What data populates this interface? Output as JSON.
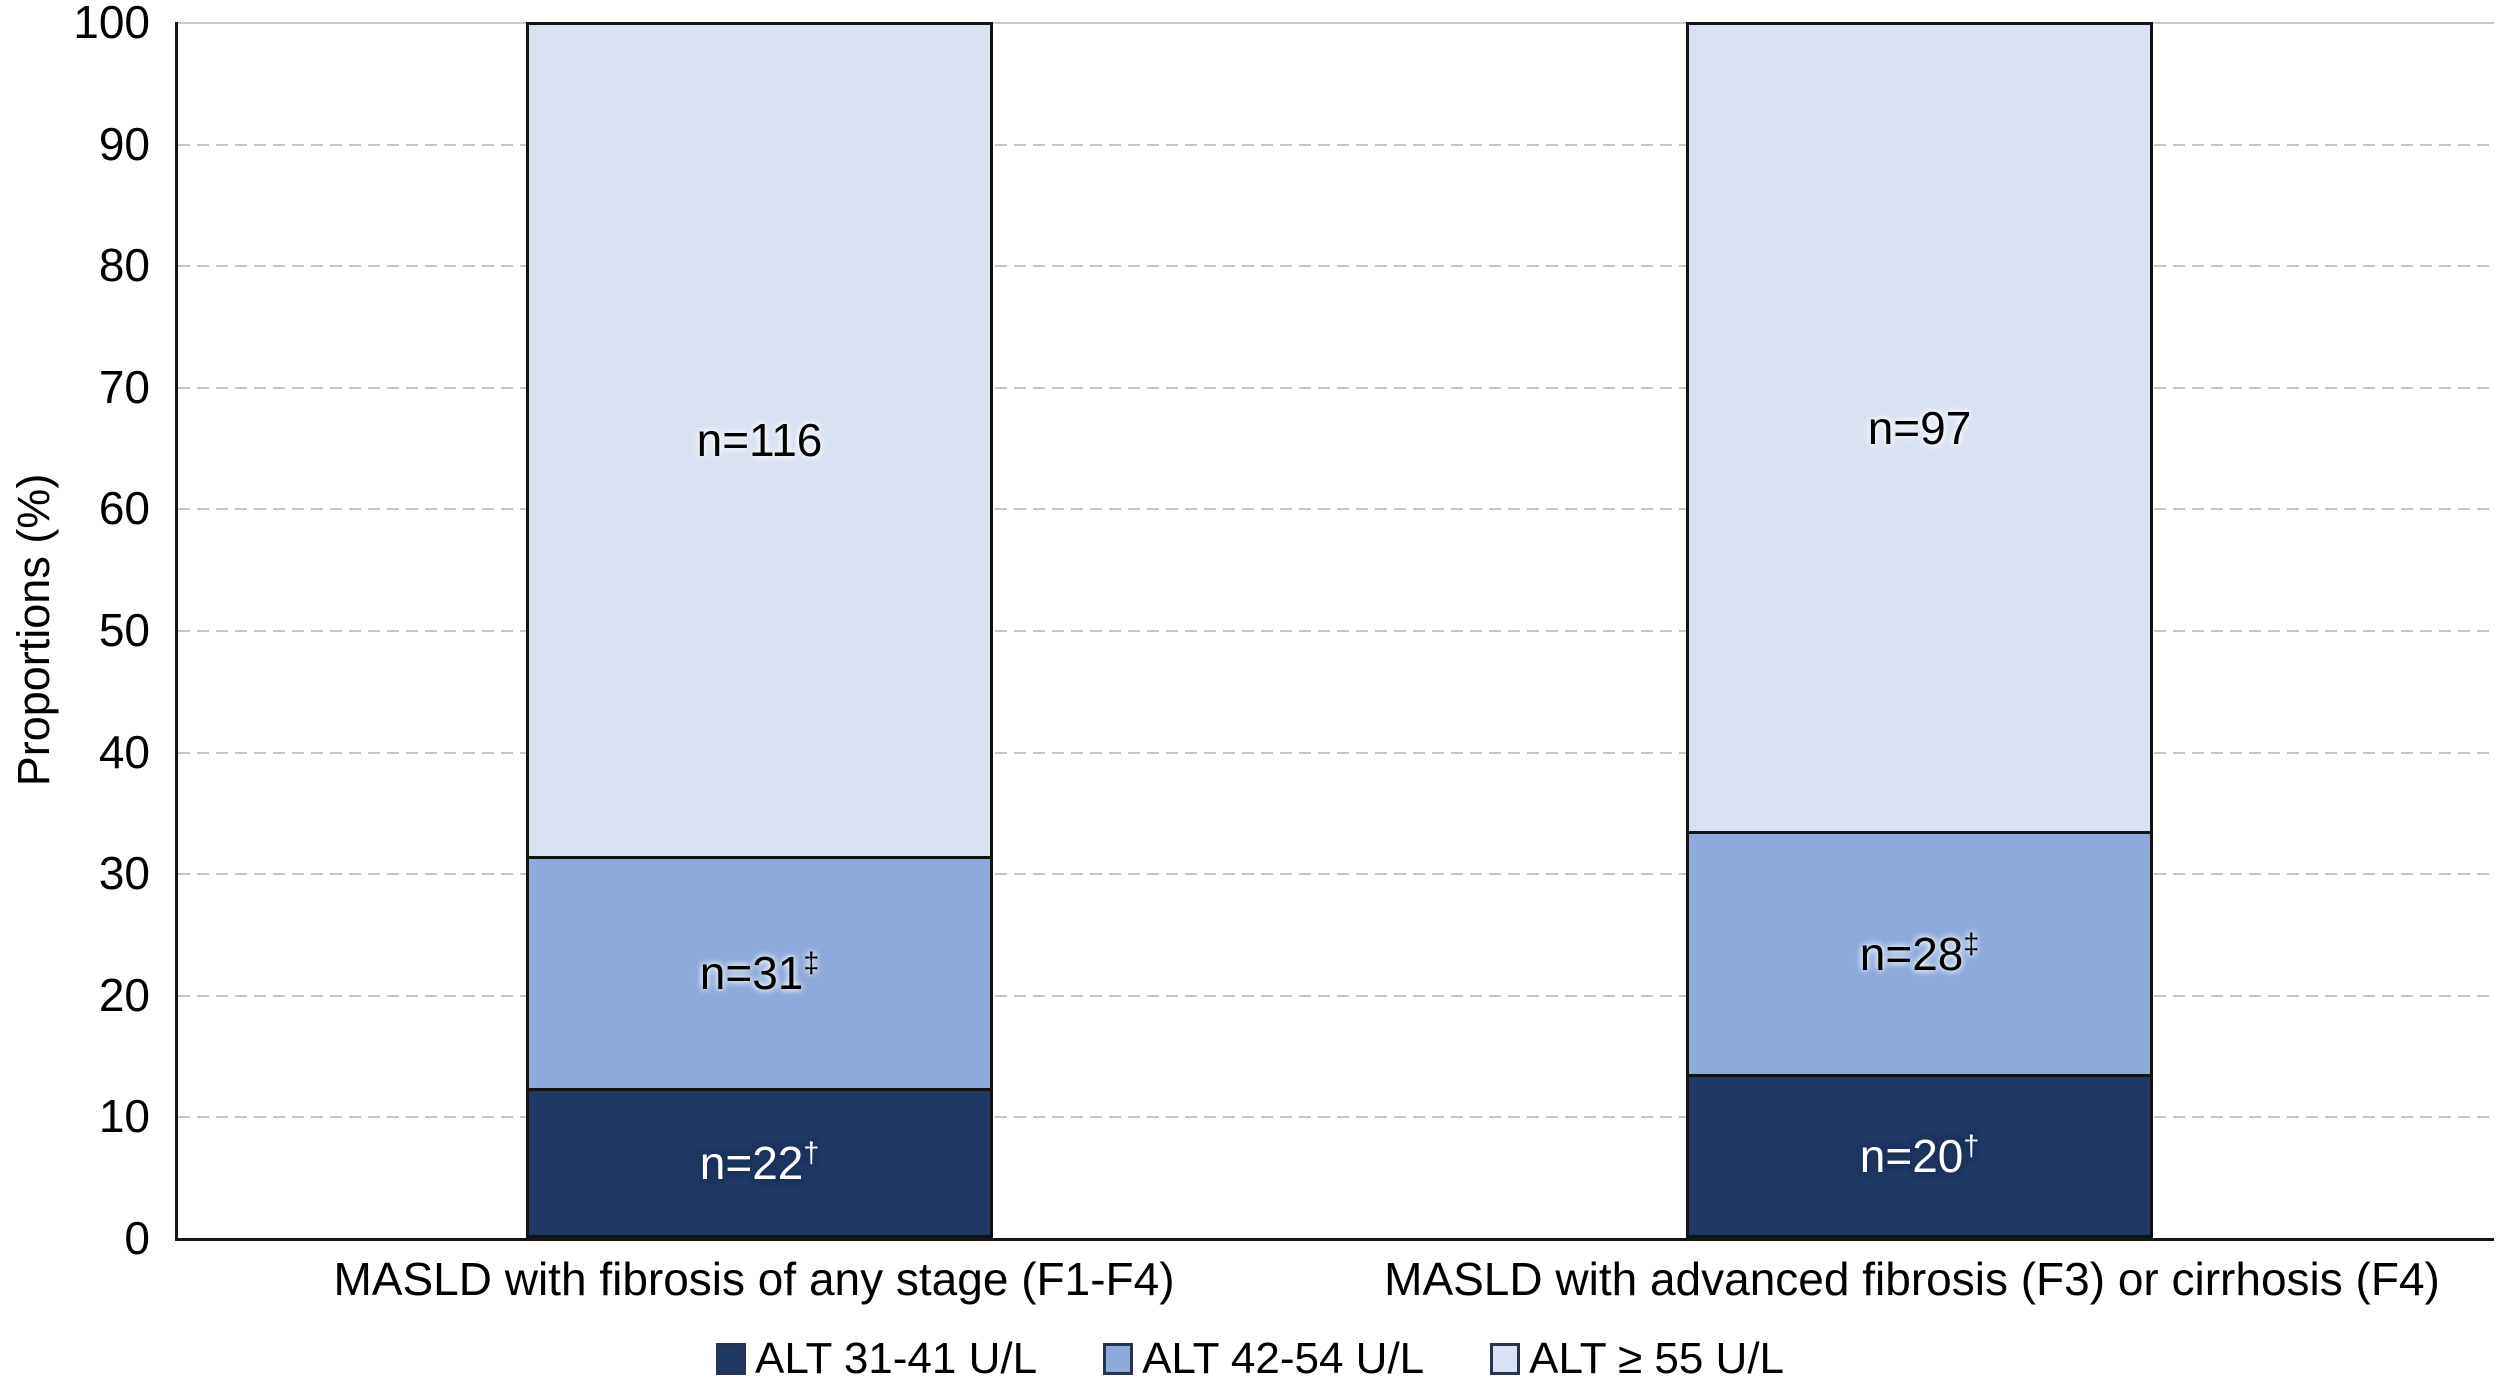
{
  "chart_data": {
    "type": "bar",
    "subtype": "stacked-100-percent",
    "ylabel": "Proportions (%)",
    "ylim": [
      0,
      100
    ],
    "ytick_step": 10,
    "grid": "horizontal-dashed",
    "legend_position": "bottom-center",
    "categories": [
      "MASLD with fibrosis of any stage (F1-F4)",
      "MASLD with advanced fibrosis (F3) or cirrhosis (F4)"
    ],
    "series": [
      {
        "name": "ALT 31-41 U/L",
        "color": "#1F3864",
        "label_color": "#ffffff",
        "values_pct": [
          12.1,
          13.2
        ],
        "labels": [
          {
            "text": "n=22",
            "sup": "†"
          },
          {
            "text": "n=20",
            "sup": "†"
          }
        ]
      },
      {
        "name": "ALT 42-54 U/L",
        "color": "#8EAADB",
        "label_color": "#000000",
        "values_pct": [
          19.1,
          20.0
        ],
        "labels": [
          {
            "text": "n=31",
            "sup": "‡"
          },
          {
            "text": "n=28",
            "sup": "‡"
          }
        ]
      },
      {
        "name": "ALT ≥ 55 U/L",
        "color": "#D9E2F3",
        "label_color": "#000000",
        "values_pct": [
          68.8,
          66.8
        ],
        "labels": [
          {
            "text": "n=116",
            "sup": ""
          },
          {
            "text": "n=97",
            "sup": ""
          }
        ]
      }
    ],
    "colors": {
      "axis": "#161616",
      "gridline": "#c6c6c6",
      "top_border_line": "#c9c9c9"
    }
  }
}
